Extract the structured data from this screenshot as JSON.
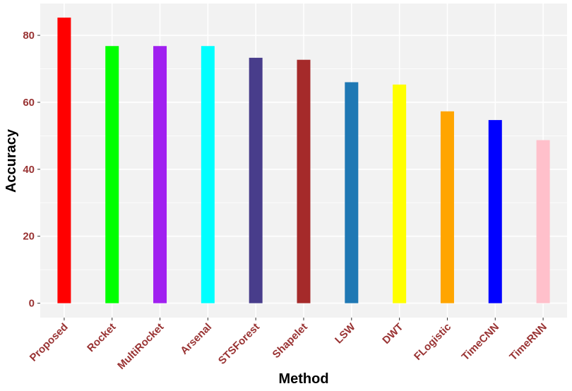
{
  "chart_data": {
    "type": "bar",
    "title": "",
    "xlabel": "Method",
    "ylabel": "Accuracy",
    "ylim": [
      -4.3,
      89.5
    ],
    "yticks": [
      0,
      20,
      40,
      60,
      80
    ],
    "grid": true,
    "categories": [
      "Proposed",
      "Rocket",
      "MultiRocket",
      "Arsenal",
      "STSForest",
      "Shapelet",
      "LSW",
      "DWT",
      "FLogistic",
      "TimeCNN",
      "TimeRNN"
    ],
    "values": [
      85.3,
      76.8,
      76.8,
      76.8,
      73.3,
      72.7,
      66.0,
      65.3,
      57.3,
      54.7,
      48.7
    ],
    "colors": [
      "#ff0000",
      "#00ff00",
      "#a020f0",
      "#00ffff",
      "#483d8b",
      "#a52a2a",
      "#1f78b4",
      "#ffff00",
      "#ffa500",
      "#0000ff",
      "#ffc0cb"
    ]
  },
  "style": {
    "panel_background": "#f2f2f2",
    "grid_color": "#ffffff",
    "tick_label_color": "#993333"
  }
}
